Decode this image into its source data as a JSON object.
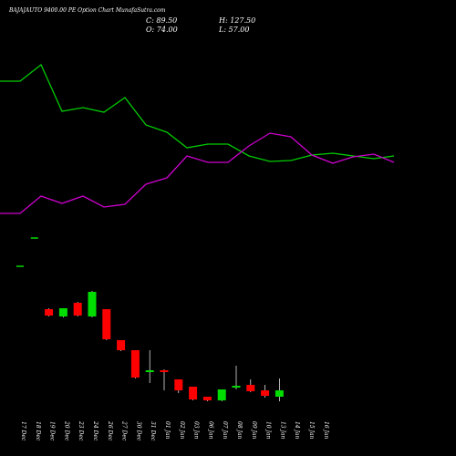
{
  "header": {
    "title": "BAJAJAUTO 9400.00 PE Option Chart MunafaSutra.com",
    "close": "C: 89.50",
    "high": "H: 127.50",
    "open": "O: 74.00",
    "low": "L: 57.00"
  },
  "chart_data": {
    "type": "candlestick",
    "x": [
      "17 Dec",
      "18 Dec",
      "19 Dec",
      "20 Dec",
      "23 Dec",
      "24 Dec",
      "26 Dec",
      "27 Dec",
      "30 Dec",
      "31 Dec",
      "01 Jan",
      "02 Jan",
      "03 Jan",
      "06 Jan",
      "07 Jan",
      "08 Jan",
      "09 Jan",
      "10 Jan",
      "13 Jan",
      "14 Jan",
      "15 Jan",
      "16 Jan"
    ],
    "candles": [
      {
        "date": "17 Dec",
        "open": null,
        "high": null,
        "low": null,
        "close": null
      },
      {
        "date": "18 Dec",
        "open": null,
        "high": null,
        "low": null,
        "close": null
      },
      {
        "date": "19 Dec",
        "open": null,
        "high": null,
        "low": null,
        "close": null
      },
      {
        "date": "20 Dec",
        "open": null,
        "high": null,
        "low": null,
        "close": null
      },
      {
        "date": "23 Dec",
        "open": null,
        "high": null,
        "low": null,
        "close": null
      },
      {
        "date": "24 Dec",
        "open": null,
        "high": null,
        "low": null,
        "close": null
      },
      {
        "date": "26 Dec",
        "open": null,
        "high": null,
        "low": null,
        "close": null
      },
      {
        "date": "27 Dec",
        "open": null,
        "high": null,
        "low": null,
        "close": null
      },
      {
        "date": "30 Dec",
        "open": null,
        "high": null,
        "low": null,
        "close": null
      },
      {
        "date": "31 Dec",
        "open": null,
        "high": null,
        "low": null,
        "close": null
      },
      {
        "date": "01 Jan",
        "open": null,
        "high": null,
        "low": null,
        "close": null
      },
      {
        "date": "02 Jan",
        "open": null,
        "high": null,
        "low": null,
        "close": null
      },
      {
        "date": "03 Jan",
        "open": null,
        "high": null,
        "low": null,
        "close": null
      },
      {
        "date": "06 Jan",
        "open": null,
        "high": null,
        "low": null,
        "close": null
      },
      {
        "date": "07 Jan",
        "open": null,
        "high": null,
        "low": null,
        "close": null
      },
      {
        "date": "08 Jan",
        "open": null,
        "high": null,
        "low": null,
        "close": null
      },
      {
        "date": "09 Jan",
        "open": null,
        "high": null,
        "low": null,
        "close": null
      },
      {
        "date": "10 Jan",
        "open": null,
        "high": null,
        "low": null,
        "close": null
      },
      {
        "date": "13 Jan",
        "open": null,
        "high": null,
        "low": null,
        "close": null
      },
      {
        "date": "14 Jan",
        "open": null,
        "high": null,
        "low": null,
        "close": null
      },
      {
        "date": "15 Jan",
        "open": null,
        "high": null,
        "low": null,
        "close": null
      },
      {
        "date": "16 Jan",
        "open": 74.0,
        "high": 127.5,
        "low": 57.0,
        "close": 89.5
      }
    ],
    "price_candles": [
      {
        "o": null,
        "h": null,
        "l": null,
        "c": null
      },
      {
        "o": null,
        "h": null,
        "l": null,
        "c": null
      },
      {
        "o": null,
        "h": null,
        "l": null,
        "c": null
      },
      {
        "o": null,
        "h": null,
        "l": null,
        "c": null
      },
      {
        "o": null,
        "h": null,
        "l": null,
        "c": null
      },
      {
        "o": null,
        "h": null,
        "l": null,
        "c": null
      },
      {
        "o": null,
        "h": null,
        "l": null,
        "c": null
      },
      {
        "o": null,
        "h": null,
        "l": null,
        "c": null
      },
      {
        "o": null,
        "h": null,
        "l": null,
        "c": null
      },
      {
        "o": null,
        "h": null,
        "l": null,
        "c": null
      },
      {
        "o": null,
        "h": null,
        "l": null,
        "c": null
      },
      {
        "o": null,
        "h": null,
        "l": null,
        "c": null
      },
      {
        "o": null,
        "h": null,
        "l": null,
        "c": null
      },
      {
        "o": null,
        "h": null,
        "l": null,
        "c": null
      },
      {
        "o": null,
        "h": null,
        "l": null,
        "c": null
      },
      {
        "o": null,
        "h": null,
        "l": null,
        "c": null
      },
      {
        "o": null,
        "h": null,
        "l": null,
        "c": null
      },
      {
        "o": null,
        "h": null,
        "l": null,
        "c": null
      },
      {
        "o": null,
        "h": null,
        "l": null,
        "c": null
      },
      {
        "o": null,
        "h": null,
        "l": null,
        "c": null
      },
      {
        "o": null,
        "h": null,
        "l": null,
        "c": null
      },
      {
        "o": null,
        "h": null,
        "l": null,
        "c": null
      }
    ],
    "marks": [
      {
        "date": "17 Dec",
        "o": 292,
        "h": 292,
        "l": 292,
        "c": 292
      },
      {
        "date": "18 Dec",
        "o": 261,
        "h": 261,
        "l": 261,
        "c": 261
      },
      {
        "date": "19 Dec",
        "o": 339,
        "h": 338,
        "l": 347,
        "c": 346
      },
      {
        "date": "20 Dec",
        "o": 347,
        "h": 338,
        "l": 348,
        "c": 338
      },
      {
        "date": "23 Dec",
        "o": 332,
        "h": 331,
        "l": 347,
        "c": 346
      },
      {
        "date": "24 Dec",
        "o": 347,
        "h": 319,
        "l": 348,
        "c": 320
      },
      {
        "date": "26 Dec",
        "o": 339,
        "h": 339,
        "l": 373,
        "c": 372
      },
      {
        "date": "27 Dec",
        "o": 373,
        "h": 373,
        "l": 385,
        "c": 384
      },
      {
        "date": "30 Dec",
        "o": 384,
        "h": 384,
        "l": 415,
        "c": 414
      },
      {
        "date": "31 Dec",
        "o": 408,
        "h": 384,
        "l": 420,
        "c": 407
      },
      {
        "date": "01 Jan",
        "o": 406,
        "h": 398,
        "l": 428,
        "c": 407
      },
      {
        "date": "02 Jan",
        "o": 416,
        "h": 416,
        "l": 431,
        "c": 428
      },
      {
        "date": "03 Jan",
        "o": 424,
        "h": 424,
        "l": 439,
        "c": 438
      },
      {
        "date": "06 Jan",
        "o": 435,
        "h": 435,
        "l": 440,
        "c": 439
      },
      {
        "date": "07 Jan",
        "o": 439,
        "h": 427,
        "l": 440,
        "c": 427
      },
      {
        "date": "08 Jan",
        "o": 425,
        "h": 401,
        "l": 427,
        "c": 423
      },
      {
        "date": "09 Jan",
        "o": 422,
        "h": 416,
        "l": 430,
        "c": 429
      },
      {
        "date": "10 Jan",
        "o": 428,
        "h": 422,
        "l": 436,
        "c": 434
      },
      {
        "date": "13 Jan",
        "o": 435,
        "h": 415,
        "l": 440,
        "c": 428
      }
    ],
    "lines": [
      {
        "color": "#00cc00",
        "x": [
          0,
          22,
          45,
          68,
          91,
          114,
          137,
          160,
          183,
          205,
          228,
          250,
          273,
          296,
          319,
          342,
          365,
          387,
          410,
          432
        ],
        "y": [
          89,
          89,
          71,
          122,
          118,
          123,
          107,
          137,
          145,
          162,
          158,
          158,
          171,
          177,
          176,
          170,
          168,
          171,
          174,
          171
        ]
      },
      {
        "color": "#cc00cc",
        "x": [
          0,
          22,
          45,
          68,
          91,
          114,
          137,
          160,
          183,
          205,
          228,
          250,
          273,
          296,
          319,
          342,
          365,
          387,
          410,
          432
        ],
        "y": [
          234,
          234,
          215,
          223,
          215,
          227,
          224,
          202,
          195,
          171,
          178,
          178,
          160,
          146,
          150,
          170,
          179,
          172,
          169,
          178
        ]
      }
    ],
    "colors": {
      "up": "#00dd00",
      "down": "#ff0000",
      "neutral": "#ffffff",
      "green_line": "#00cc00",
      "magenta_line": "#cc00cc"
    }
  }
}
